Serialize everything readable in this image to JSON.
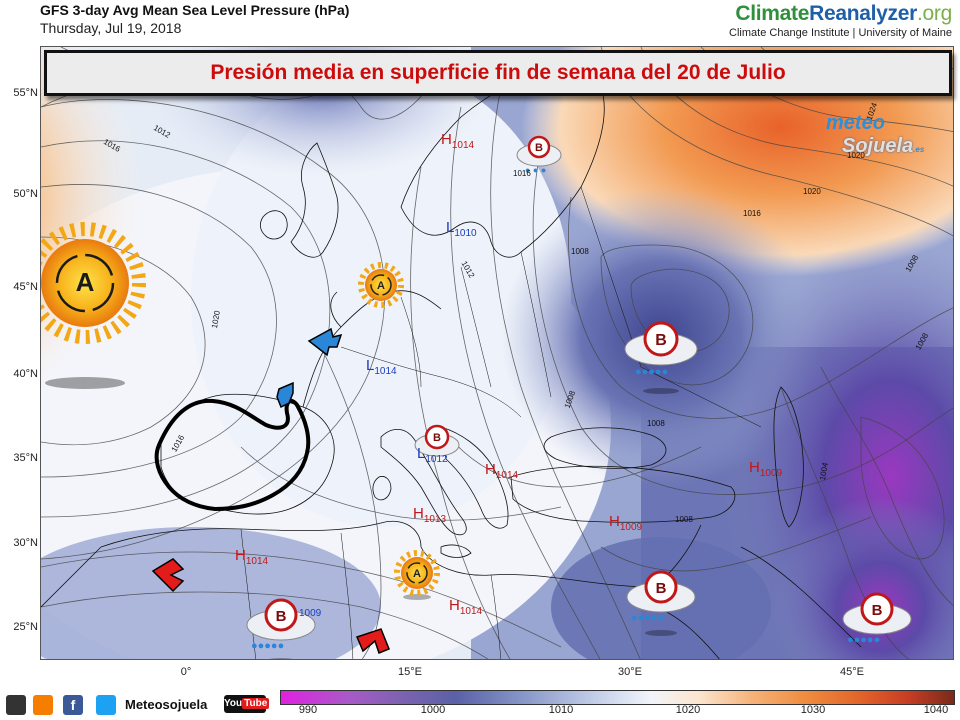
{
  "header": {
    "title": "GFS 3-day Avg Mean Sea Level Pressure (hPa)",
    "date": "Thursday, Jul 19, 2018"
  },
  "brand": {
    "part1": "Climate",
    "part2": "Reanalyzer",
    "part3": ".org",
    "subtitle": "Climate Change Institute | University of Maine"
  },
  "banner": {
    "text": "Presión media en superficie fin de semana del 20 de Julio"
  },
  "axes": {
    "lat_labels": [
      "55°N",
      "50°N",
      "45°N",
      "40°N",
      "35°N",
      "30°N",
      "25°N"
    ],
    "lon_labels": [
      "0°",
      "15°E",
      "30°E",
      "45°E"
    ]
  },
  "colorbar": {
    "labels": [
      "990",
      "1000",
      "1010",
      "1020",
      "1030",
      "1040"
    ]
  },
  "pressure_centers": [
    {
      "letter": "H",
      "value": "1014",
      "type": "high"
    },
    {
      "letter": "L",
      "value": "1010",
      "type": "low"
    },
    {
      "letter": "L",
      "value": "1014",
      "type": "low"
    },
    {
      "letter": "L",
      "value": "1012",
      "type": "low"
    },
    {
      "letter": "H",
      "value": "1014",
      "type": "high"
    },
    {
      "letter": "H",
      "value": "1013",
      "type": "high"
    },
    {
      "letter": "H",
      "value": "1009",
      "type": "high"
    },
    {
      "letter": "H",
      "value": "1009",
      "type": "high"
    },
    {
      "letter": "H",
      "value": "1014",
      "type": "high"
    },
    {
      "letter": "H",
      "value": "1014",
      "type": "high"
    },
    {
      "letter": "",
      "value": "1009",
      "type": "low"
    }
  ],
  "isobar_labels": [
    "1012",
    "1016",
    "1016",
    "1020",
    "1024",
    "1016",
    "1020",
    "1008",
    "1008",
    "1012",
    "1008",
    "1008",
    "1008",
    "1004",
    "1008",
    "1016",
    "1020"
  ],
  "symbol_letters": {
    "anticyclone": "A",
    "cyclone": "B"
  },
  "meteo_logo": {
    "part1": "meteo",
    "part2": "Sojuela",
    "part3": ".es"
  },
  "footer": {
    "social_text": "Meteosojuela",
    "youtube_prefix": "You",
    "youtube_suffix": "Tube"
  },
  "colors": {
    "high_pressure": "#ef8c3e",
    "low_pressure": "#5a61a6",
    "banner_text": "#cc0c0c",
    "center_high": "#c01818",
    "center_low": "#1a3cc0"
  }
}
